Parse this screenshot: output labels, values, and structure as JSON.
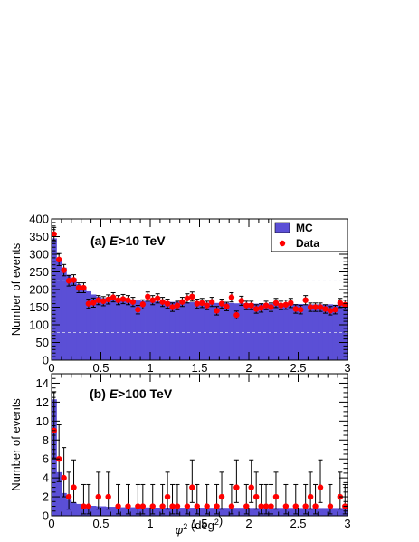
{
  "colors": {
    "mc": "#5b4fd6",
    "data": "#ff0000",
    "axis": "#000000",
    "dashed": "#cfcfe8"
  },
  "legend": {
    "mc_label": "MC",
    "data_label": "Data"
  },
  "xlabel": "φ² (deg²)",
  "chart_data": [
    {
      "type": "bar",
      "panel_label": "(a)  E>10 TeV",
      "ylabel": "Number of events",
      "xlim": [
        0,
        3
      ],
      "ylim": [
        0,
        400
      ],
      "x_ticks": [
        "0",
        "0.5",
        "1",
        "1.5",
        "2",
        "2.5",
        "3"
      ],
      "y_ticks": [
        "0",
        "50",
        "100",
        "150",
        "200",
        "250",
        "300",
        "350",
        "400"
      ],
      "legend_position": "top-right",
      "series": [
        {
          "name": "MC",
          "type": "hist",
          "bin_width": 0.05,
          "values": [
            345,
            285,
            262,
            242,
            232,
            215,
            205,
            195,
            186,
            180,
            176,
            174,
            173,
            172,
            171,
            170,
            170,
            169,
            168,
            168,
            167,
            167,
            166,
            166,
            165,
            165,
            165,
            164,
            164,
            164,
            163,
            163,
            163,
            162,
            162,
            162,
            162,
            161,
            161,
            161,
            161,
            160,
            160,
            160,
            160,
            160,
            159,
            159,
            159,
            159,
            159,
            158,
            158,
            158,
            158,
            158,
            158,
            157,
            157,
            157
          ]
        },
        {
          "name": "Data",
          "type": "points",
          "x": [
            0.025,
            0.075,
            0.125,
            0.175,
            0.225,
            0.275,
            0.325,
            0.375,
            0.425,
            0.475,
            0.525,
            0.575,
            0.625,
            0.675,
            0.725,
            0.775,
            0.825,
            0.875,
            0.925,
            0.975,
            1.025,
            1.075,
            1.125,
            1.175,
            1.225,
            1.275,
            1.325,
            1.375,
            1.425,
            1.475,
            1.525,
            1.575,
            1.625,
            1.675,
            1.725,
            1.775,
            1.825,
            1.875,
            1.925,
            1.975,
            2.025,
            2.075,
            2.125,
            2.175,
            2.225,
            2.275,
            2.325,
            2.375,
            2.425,
            2.475,
            2.525,
            2.575,
            2.625,
            2.675,
            2.725,
            2.775,
            2.825,
            2.875,
            2.925,
            2.975
          ],
          "y": [
            357,
            285,
            255,
            225,
            227,
            205,
            205,
            160,
            163,
            170,
            167,
            172,
            178,
            170,
            173,
            170,
            165,
            143,
            158,
            180,
            170,
            175,
            165,
            160,
            150,
            155,
            165,
            175,
            180,
            160,
            162,
            155,
            165,
            140,
            160,
            152,
            178,
            128,
            168,
            155,
            155,
            145,
            148,
            155,
            150,
            162,
            155,
            157,
            162,
            145,
            143,
            170,
            150,
            150,
            150,
            145,
            140,
            143,
            162,
            157
          ],
          "err": [
            19,
            17,
            16,
            15,
            15,
            14,
            14,
            13,
            13,
            13,
            13,
            13,
            13,
            13,
            13,
            13,
            13,
            12,
            13,
            13,
            13,
            13,
            13,
            13,
            12,
            12,
            13,
            13,
            13,
            13,
            13,
            12,
            13,
            12,
            13,
            12,
            13,
            11,
            13,
            12,
            12,
            12,
            12,
            12,
            12,
            13,
            12,
            13,
            13,
            12,
            12,
            13,
            12,
            12,
            12,
            12,
            12,
            12,
            13,
            13
          ]
        }
      ],
      "dashed_lines_y": [
        225,
        78
      ]
    },
    {
      "type": "bar",
      "panel_label": "(b)  E>100 TeV",
      "ylabel": "Number of events",
      "xlim": [
        0,
        3
      ],
      "ylim": [
        0,
        15
      ],
      "x_ticks": [
        "0",
        "0.5",
        "1",
        "1.5",
        "2",
        "2.5",
        "3"
      ],
      "y_ticks": [
        "0",
        "2",
        "4",
        "6",
        "8",
        "10",
        "12",
        "14"
      ],
      "series": [
        {
          "name": "MC",
          "type": "hist",
          "bin_width": 0.05,
          "values": [
            12.3,
            4.6,
            2.4,
            1.7,
            1.4,
            1.25,
            1.15,
            1.1,
            1.05,
            1.0,
            1.0,
            0.95,
            0.95,
            0.9,
            0.9,
            0.9,
            0.9,
            0.9,
            0.88,
            0.88,
            0.88,
            0.86,
            0.86,
            0.86,
            0.86,
            0.85,
            0.85,
            0.85,
            0.85,
            0.85,
            0.85,
            0.85,
            0.84,
            0.84,
            0.84,
            0.84,
            0.84,
            0.84,
            0.84,
            0.84,
            0.83,
            0.83,
            0.83,
            0.83,
            0.83,
            0.83,
            0.83,
            0.83,
            0.83,
            0.83,
            0.82,
            0.82,
            0.82,
            0.82,
            0.82,
            0.82,
            0.82,
            0.82,
            0.82,
            0.82
          ]
        },
        {
          "name": "Data",
          "type": "points",
          "x": [
            0.025,
            0.075,
            0.125,
            0.175,
            0.225,
            0.325,
            0.375,
            0.475,
            0.575,
            0.675,
            0.775,
            0.875,
            0.925,
            1.025,
            1.125,
            1.175,
            1.225,
            1.275,
            1.375,
            1.425,
            1.475,
            1.575,
            1.675,
            1.725,
            1.825,
            1.875,
            1.975,
            2.025,
            2.075,
            2.125,
            2.175,
            2.225,
            2.275,
            2.375,
            2.475,
            2.575,
            2.625,
            2.675,
            2.725,
            2.825,
            2.925,
            2.975
          ],
          "y": [
            9,
            6,
            4,
            2,
            3,
            1,
            1,
            2,
            2,
            1,
            1,
            1,
            1,
            1,
            1,
            2,
            1,
            1,
            1,
            3,
            1,
            1,
            1,
            2,
            1,
            3,
            1,
            3,
            2,
            1,
            1,
            1,
            2,
            1,
            1,
            1,
            2,
            1,
            3,
            1,
            2,
            1
          ],
          "err_lo": [
            2.9,
            2.4,
            2.0,
            1.3,
            1.6,
            0.8,
            0.8,
            1.3,
            1.3,
            0.8,
            0.8,
            0.8,
            0.8,
            0.8,
            0.8,
            1.3,
            0.8,
            0.8,
            0.8,
            1.6,
            0.8,
            0.8,
            0.8,
            1.3,
            0.8,
            1.6,
            0.8,
            1.6,
            1.3,
            0.8,
            0.8,
            0.8,
            1.3,
            0.8,
            0.8,
            0.8,
            1.3,
            0.8,
            1.6,
            0.8,
            1.3,
            0.8
          ],
          "err_hi": [
            4.1,
            3.6,
            3.2,
            2.6,
            2.9,
            2.3,
            2.3,
            2.6,
            2.6,
            2.3,
            2.3,
            2.3,
            2.3,
            2.3,
            2.3,
            2.6,
            2.3,
            2.3,
            2.3,
            2.9,
            2.3,
            2.3,
            2.3,
            2.6,
            2.3,
            2.9,
            2.3,
            2.9,
            2.6,
            2.3,
            2.3,
            2.3,
            2.6,
            2.3,
            2.3,
            2.3,
            2.6,
            2.3,
            2.9,
            2.3,
            2.6,
            2.3
          ]
        }
      ]
    }
  ]
}
